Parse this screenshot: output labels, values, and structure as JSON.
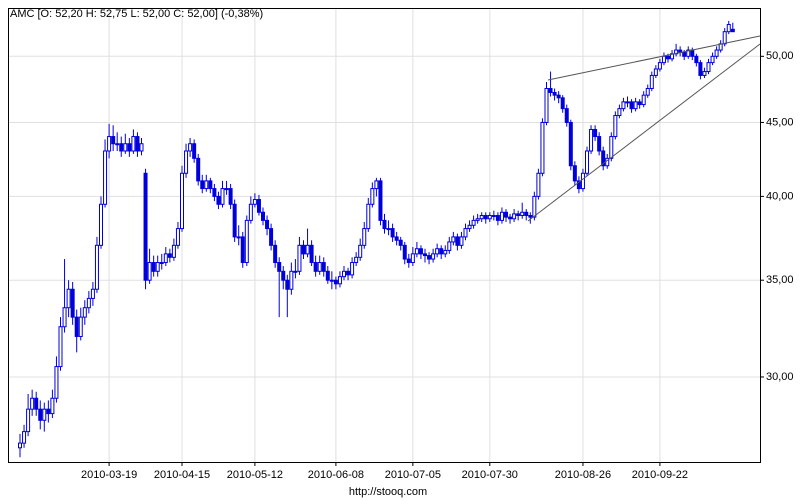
{
  "chart_data": {
    "type": "candlestick",
    "title": "AMC [O: 52,20 H: 52,75 L: 52,00 C: 52,00] (-0,38%)",
    "source": "http://stooq.com",
    "color": "#0000dd",
    "log_scale": true,
    "grid": true,
    "ylim": [
      26.2,
      54
    ],
    "yticks": [
      {
        "value": 30,
        "label": "30,00"
      },
      {
        "value": 35,
        "label": "35,00"
      },
      {
        "value": 40,
        "label": "40,00"
      },
      {
        "value": 45,
        "label": "45,00"
      },
      {
        "value": 50,
        "label": "50,00"
      }
    ],
    "categories": [
      null,
      null,
      null,
      null,
      null,
      null,
      null,
      null,
      null,
      null,
      null,
      null,
      null,
      null,
      null,
      null,
      null,
      null,
      null,
      null,
      null,
      null,
      "2010-03-19",
      null,
      null,
      null,
      null,
      null,
      null,
      null,
      null,
      null,
      null,
      null,
      null,
      null,
      null,
      null,
      null,
      null,
      "2010-04-15",
      null,
      null,
      null,
      null,
      null,
      null,
      null,
      null,
      null,
      null,
      null,
      null,
      null,
      null,
      null,
      null,
      null,
      "2010-05-12",
      null,
      null,
      null,
      null,
      null,
      null,
      null,
      null,
      null,
      null,
      null,
      null,
      null,
      null,
      null,
      null,
      null,
      null,
      null,
      "2010-06-08",
      null,
      null,
      null,
      null,
      null,
      null,
      null,
      null,
      null,
      null,
      null,
      null,
      null,
      null,
      null,
      null,
      null,
      null,
      "2010-07-05",
      null,
      null,
      null,
      null,
      null,
      null,
      null,
      null,
      null,
      null,
      null,
      null,
      null,
      null,
      null,
      null,
      null,
      null,
      "2010-07-30",
      null,
      null,
      null,
      null,
      null,
      null,
      null,
      null,
      null,
      null,
      null,
      null,
      null,
      null,
      null,
      null,
      null,
      null,
      null,
      null,
      null,
      null,
      "2010-08-26",
      null,
      null,
      null,
      null,
      null,
      null,
      null,
      null,
      null,
      null,
      null,
      null,
      null,
      null,
      null,
      null,
      null,
      null,
      "2010-09-22",
      null,
      null,
      null,
      null,
      null,
      null,
      null,
      null,
      null,
      null,
      null,
      null,
      null,
      null,
      null,
      null,
      null,
      null
    ],
    "ohlc": [
      [
        26.8,
        27.4,
        26.4,
        27.0
      ],
      [
        27.0,
        27.8,
        26.8,
        27.5
      ],
      [
        27.5,
        29.2,
        27.3,
        28.5
      ],
      [
        28.5,
        29.4,
        28.2,
        29.0
      ],
      [
        29.0,
        29.3,
        28.2,
        28.5
      ],
      [
        28.5,
        28.9,
        27.6,
        28.0
      ],
      [
        28.0,
        28.8,
        27.5,
        28.5
      ],
      [
        28.5,
        28.9,
        27.9,
        28.3
      ],
      [
        28.3,
        29.4,
        28.1,
        29.0
      ],
      [
        29.0,
        31.0,
        28.8,
        30.5
      ],
      [
        30.5,
        33.0,
        30.3,
        32.5
      ],
      [
        32.5,
        36.2,
        32.2,
        33.5
      ],
      [
        33.5,
        35.0,
        33.0,
        34.5
      ],
      [
        34.5,
        34.9,
        32.6,
        33.0
      ],
      [
        33.0,
        33.4,
        31.2,
        32.0
      ],
      [
        32.0,
        33.5,
        31.8,
        33.0
      ],
      [
        33.0,
        33.9,
        32.6,
        33.5
      ],
      [
        33.5,
        34.4,
        33.2,
        34.0
      ],
      [
        34.0,
        34.9,
        33.6,
        34.5
      ],
      [
        34.5,
        37.5,
        34.3,
        37.0
      ],
      [
        37.0,
        40.0,
        36.8,
        39.5
      ],
      [
        39.5,
        43.8,
        39.3,
        43.0
      ],
      [
        43.0,
        44.9,
        42.5,
        44.0
      ],
      [
        44.0,
        44.8,
        43.0,
        43.5
      ],
      [
        43.5,
        44.3,
        43.0,
        43.5
      ],
      [
        43.5,
        44.0,
        42.6,
        43.0
      ],
      [
        43.0,
        44.2,
        42.8,
        43.5
      ],
      [
        43.5,
        43.9,
        42.6,
        43.0
      ],
      [
        43.0,
        44.5,
        42.8,
        44.0
      ],
      [
        44.0,
        44.3,
        42.6,
        43.0
      ],
      [
        43.0,
        43.9,
        42.7,
        43.5
      ],
      [
        41.5,
        41.8,
        34.5,
        35.0
      ],
      [
        35.0,
        36.8,
        34.8,
        36.0
      ],
      [
        36.0,
        36.4,
        35.2,
        35.5
      ],
      [
        35.5,
        36.4,
        35.2,
        36.0
      ],
      [
        36.0,
        36.5,
        35.6,
        36.0
      ],
      [
        36.0,
        36.9,
        35.8,
        36.5
      ],
      [
        36.5,
        36.8,
        36.0,
        36.3
      ],
      [
        36.3,
        37.4,
        36.1,
        37.0
      ],
      [
        37.0,
        38.4,
        36.8,
        38.0
      ],
      [
        38.0,
        42.0,
        37.8,
        41.5
      ],
      [
        41.5,
        43.5,
        41.2,
        43.0
      ],
      [
        43.0,
        43.9,
        42.6,
        43.5
      ],
      [
        43.5,
        43.8,
        42.2,
        42.5
      ],
      [
        42.5,
        42.8,
        40.7,
        41.0
      ],
      [
        41.0,
        41.4,
        40.2,
        40.5
      ],
      [
        40.5,
        41.4,
        40.3,
        41.0
      ],
      [
        41.0,
        41.2,
        40.2,
        40.5
      ],
      [
        40.5,
        40.8,
        39.7,
        40.0
      ],
      [
        40.0,
        40.3,
        39.2,
        39.5
      ],
      [
        39.5,
        41.0,
        39.3,
        40.5
      ],
      [
        40.5,
        41.0,
        40.1,
        40.5
      ],
      [
        40.5,
        40.8,
        39.2,
        39.5
      ],
      [
        39.5,
        39.8,
        37.2,
        37.5
      ],
      [
        37.5,
        38.2,
        37.0,
        37.5
      ],
      [
        37.5,
        37.8,
        35.7,
        36.0
      ],
      [
        36.0,
        38.8,
        35.8,
        38.5
      ],
      [
        38.5,
        40.0,
        38.3,
        39.5
      ],
      [
        39.5,
        40.2,
        39.3,
        39.8
      ],
      [
        39.8,
        40.1,
        38.8,
        39.0
      ],
      [
        39.0,
        39.3,
        38.2,
        38.5
      ],
      [
        38.5,
        38.8,
        37.6,
        38.0
      ],
      [
        38.0,
        38.3,
        36.7,
        37.0
      ],
      [
        37.0,
        37.3,
        35.7,
        36.0
      ],
      [
        36.0,
        36.3,
        33.0,
        35.5
      ],
      [
        35.5,
        35.8,
        34.5,
        35.0
      ],
      [
        35.0,
        35.3,
        33.0,
        34.5
      ],
      [
        34.5,
        36.0,
        34.2,
        35.5
      ],
      [
        35.5,
        36.2,
        35.1,
        35.5
      ],
      [
        35.5,
        37.5,
        35.3,
        37.0
      ],
      [
        37.0,
        37.3,
        36.2,
        36.5
      ],
      [
        36.5,
        38.0,
        36.3,
        37.0
      ],
      [
        37.0,
        37.3,
        35.8,
        36.0
      ],
      [
        36.0,
        36.4,
        35.2,
        35.5
      ],
      [
        35.5,
        36.4,
        35.3,
        36.0
      ],
      [
        36.0,
        36.3,
        35.2,
        35.5
      ],
      [
        35.5,
        35.8,
        34.8,
        35.0
      ],
      [
        35.0,
        35.5,
        34.5,
        35.0
      ],
      [
        35.0,
        35.2,
        34.5,
        34.8
      ],
      [
        34.8,
        35.5,
        34.6,
        35.2
      ],
      [
        35.2,
        35.8,
        35.0,
        35.5
      ],
      [
        35.5,
        35.7,
        35.0,
        35.3
      ],
      [
        35.3,
        36.3,
        35.1,
        36.0
      ],
      [
        36.0,
        36.6,
        35.8,
        36.3
      ],
      [
        36.3,
        37.4,
        36.1,
        37.0
      ],
      [
        37.0,
        38.4,
        36.8,
        38.0
      ],
      [
        38.0,
        39.9,
        37.8,
        39.5
      ],
      [
        39.5,
        40.9,
        39.3,
        40.5
      ],
      [
        40.5,
        41.2,
        40.0,
        41.0
      ],
      [
        41.0,
        41.2,
        38.2,
        38.5
      ],
      [
        38.5,
        38.9,
        37.7,
        38.0
      ],
      [
        38.0,
        38.5,
        37.6,
        38.0
      ],
      [
        38.0,
        38.3,
        37.2,
        37.5
      ],
      [
        37.5,
        37.8,
        37.0,
        37.3
      ],
      [
        37.3,
        37.5,
        36.7,
        37.0
      ],
      [
        37.0,
        37.2,
        35.9,
        36.2
      ],
      [
        36.2,
        36.5,
        35.7,
        36.0
      ],
      [
        36.0,
        36.9,
        35.8,
        36.5
      ],
      [
        36.5,
        37.2,
        36.3,
        36.8
      ],
      [
        36.8,
        37.0,
        36.2,
        36.5
      ],
      [
        36.5,
        36.8,
        36.0,
        36.4
      ],
      [
        36.4,
        36.6,
        35.9,
        36.2
      ],
      [
        36.2,
        36.8,
        36.0,
        36.5
      ],
      [
        36.5,
        37.1,
        36.3,
        36.8
      ],
      [
        36.8,
        37.0,
        36.2,
        36.5
      ],
      [
        36.5,
        37.0,
        36.3,
        36.7
      ],
      [
        36.7,
        37.5,
        36.5,
        37.2
      ],
      [
        37.2,
        37.8,
        37.0,
        37.5
      ],
      [
        37.5,
        37.7,
        36.7,
        37.0
      ],
      [
        37.0,
        37.8,
        36.8,
        37.5
      ],
      [
        37.5,
        38.3,
        37.3,
        38.0
      ],
      [
        38.0,
        38.5,
        37.8,
        38.2
      ],
      [
        38.2,
        38.8,
        38.0,
        38.5
      ],
      [
        38.5,
        38.9,
        38.3,
        38.6
      ],
      [
        38.6,
        39.0,
        38.4,
        38.8
      ],
      [
        38.8,
        39.0,
        38.3,
        38.6
      ],
      [
        38.6,
        39.0,
        38.4,
        38.8
      ],
      [
        38.8,
        39.1,
        38.5,
        38.8
      ],
      [
        38.8,
        39.0,
        38.2,
        38.5
      ],
      [
        38.5,
        39.3,
        38.3,
        39.0
      ],
      [
        39.0,
        39.2,
        38.4,
        38.7
      ],
      [
        38.7,
        38.9,
        38.3,
        38.6
      ],
      [
        38.6,
        39.2,
        38.4,
        38.9
      ],
      [
        38.9,
        39.1,
        38.5,
        38.8
      ],
      [
        38.8,
        39.6,
        38.6,
        39.0
      ],
      [
        39.0,
        39.2,
        38.5,
        38.8
      ],
      [
        38.8,
        39.0,
        38.3,
        38.7
      ],
      [
        38.7,
        40.3,
        38.5,
        40.0
      ],
      [
        40.0,
        41.8,
        39.8,
        41.5
      ],
      [
        41.5,
        45.3,
        41.3,
        45.0
      ],
      [
        45.0,
        48.0,
        44.8,
        47.5
      ],
      [
        47.5,
        48.8,
        46.9,
        47.2
      ],
      [
        47.2,
        47.5,
        46.6,
        47.0
      ],
      [
        47.0,
        47.3,
        46.4,
        46.8
      ],
      [
        46.8,
        47.0,
        45.7,
        46.0
      ],
      [
        46.0,
        46.3,
        44.7,
        45.0
      ],
      [
        45.0,
        45.2,
        41.7,
        42.0
      ],
      [
        42.0,
        42.3,
        40.7,
        41.0
      ],
      [
        41.0,
        41.3,
        40.2,
        40.5
      ],
      [
        40.5,
        41.8,
        40.3,
        41.5
      ],
      [
        41.5,
        43.3,
        41.3,
        43.0
      ],
      [
        43.0,
        44.8,
        42.8,
        44.5
      ],
      [
        44.5,
        44.8,
        43.7,
        44.0
      ],
      [
        44.0,
        44.3,
        42.7,
        43.0
      ],
      [
        43.0,
        43.3,
        41.7,
        42.0
      ],
      [
        42.0,
        42.8,
        41.8,
        42.5
      ],
      [
        42.5,
        44.3,
        42.3,
        44.0
      ],
      [
        44.0,
        45.8,
        43.8,
        45.5
      ],
      [
        45.5,
        46.3,
        45.3,
        46.0
      ],
      [
        46.0,
        46.8,
        45.8,
        46.5
      ],
      [
        46.5,
        46.9,
        46.1,
        46.5
      ],
      [
        46.5,
        46.7,
        45.7,
        46.0
      ],
      [
        46.0,
        46.8,
        45.8,
        46.5
      ],
      [
        46.5,
        46.7,
        46.0,
        46.3
      ],
      [
        46.3,
        47.3,
        46.1,
        47.0
      ],
      [
        47.0,
        47.8,
        46.8,
        47.5
      ],
      [
        47.5,
        48.8,
        47.3,
        48.5
      ],
      [
        48.5,
        49.3,
        48.3,
        49.0
      ],
      [
        49.0,
        49.8,
        48.8,
        49.5
      ],
      [
        49.5,
        50.3,
        49.3,
        50.0
      ],
      [
        50.0,
        50.2,
        49.5,
        49.8
      ],
      [
        49.8,
        50.5,
        49.6,
        50.2
      ],
      [
        50.2,
        51.0,
        50.0,
        50.5
      ],
      [
        50.5,
        50.8,
        50.0,
        50.3
      ],
      [
        50.3,
        50.5,
        49.7,
        50.0
      ],
      [
        50.0,
        50.8,
        49.8,
        50.5
      ],
      [
        50.5,
        50.7,
        49.7,
        50.0
      ],
      [
        50.0,
        50.2,
        49.2,
        49.5
      ],
      [
        49.5,
        49.7,
        48.2,
        48.5
      ],
      [
        48.5,
        49.1,
        48.3,
        48.8
      ],
      [
        48.8,
        49.8,
        48.6,
        49.5
      ],
      [
        49.5,
        50.3,
        49.3,
        50.0
      ],
      [
        50.0,
        50.8,
        49.8,
        50.5
      ],
      [
        50.5,
        51.3,
        50.3,
        51.0
      ],
      [
        51.0,
        52.3,
        50.8,
        52.0
      ],
      [
        52.0,
        52.9,
        51.8,
        52.6
      ],
      [
        52.2,
        52.75,
        52.0,
        52.0
      ]
    ]
  }
}
